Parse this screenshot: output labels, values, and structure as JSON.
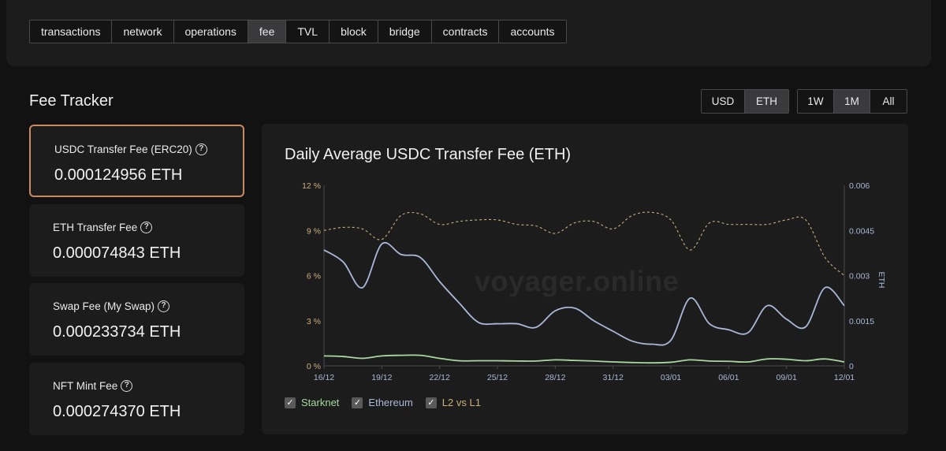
{
  "tabs": [
    {
      "label": "transactions",
      "active": false
    },
    {
      "label": "network",
      "active": false
    },
    {
      "label": "operations",
      "active": false
    },
    {
      "label": "fee",
      "active": true
    },
    {
      "label": "TVL",
      "active": false
    },
    {
      "label": "block",
      "active": false
    },
    {
      "label": "bridge",
      "active": false
    },
    {
      "label": "contracts",
      "active": false
    },
    {
      "label": "accounts",
      "active": false
    }
  ],
  "section_title": "Fee Tracker",
  "currency_toggle": {
    "options": [
      "USD",
      "ETH"
    ],
    "selected": "ETH"
  },
  "range_toggle": {
    "options": [
      "1W",
      "1M",
      "All"
    ],
    "selected": "1M"
  },
  "fee_cards": [
    {
      "label": "USDC Transfer Fee (ERC20)",
      "value": "0.000124956 ETH",
      "selected": true
    },
    {
      "label": "ETH Transfer Fee",
      "value": "0.000074843 ETH",
      "selected": false
    },
    {
      "label": "Swap Fee (My Swap)",
      "value": "0.000233734 ETH",
      "selected": false
    },
    {
      "label": "NFT Mint Fee",
      "value": "0.000274370 ETH",
      "selected": false
    }
  ],
  "watermark": "voyager.online",
  "colors": {
    "starknet": "#a8d8a0",
    "ethereum": "#a9b8d6",
    "l2_vs_l1": "#c9b07a",
    "selected_border": "#c98a60"
  },
  "chart_data": {
    "type": "line",
    "title": "Daily Average USDC Transfer Fee (ETH)",
    "xlabel": "",
    "ylabel_left": "",
    "ylabel_right": "ETH",
    "x_tick_labels": [
      "16/12",
      "19/12",
      "22/12",
      "25/12",
      "28/12",
      "31/12",
      "03/01",
      "06/01",
      "09/01",
      "12/01"
    ],
    "y_left_ticks": [
      "0 %",
      "3 %",
      "6 %",
      "9 %",
      "12 %"
    ],
    "y_right_ticks": [
      "0",
      "0.0015",
      "0.003",
      "0.0045",
      "0.006"
    ],
    "y_left_range": [
      0,
      12
    ],
    "y_right_range": [
      0,
      0.006
    ],
    "x": [
      0,
      1,
      2,
      3,
      4,
      5,
      6,
      7,
      8,
      9,
      10,
      11,
      12,
      13,
      14,
      15,
      16,
      17,
      18,
      19,
      20,
      21,
      22,
      23,
      24,
      25,
      26,
      27
    ],
    "series": [
      {
        "name": "Starknet",
        "axis": "right",
        "style": "solid",
        "values": [
          0.00033,
          0.00031,
          0.00025,
          0.00033,
          0.00035,
          0.00035,
          0.00025,
          0.00017,
          0.00017,
          0.00017,
          0.00016,
          0.00016,
          0.0002,
          0.00018,
          0.00016,
          0.00013,
          0.00011,
          0.0001,
          0.00012,
          0.0002,
          0.00016,
          0.00015,
          0.00013,
          0.00023,
          0.00022,
          0.00017,
          0.00023,
          0.00013
        ]
      },
      {
        "name": "Ethereum",
        "axis": "right",
        "style": "solid",
        "values": [
          0.00385,
          0.00345,
          0.0026,
          0.00405,
          0.0037,
          0.0036,
          0.0028,
          0.0021,
          0.00145,
          0.0014,
          0.0014,
          0.00128,
          0.00183,
          0.00192,
          0.0015,
          0.00115,
          0.00082,
          0.00072,
          0.00085,
          0.00225,
          0.0014,
          0.0012,
          0.0011,
          0.002,
          0.00155,
          0.0013,
          0.0026,
          0.002
        ]
      },
      {
        "name": "L2 vs L1",
        "axis": "left",
        "style": "dashed",
        "values": [
          9.0,
          9.2,
          9.1,
          8.4,
          10.0,
          10.1,
          9.4,
          9.6,
          9.7,
          9.7,
          9.4,
          9.3,
          8.8,
          9.5,
          9.6,
          9.1,
          10.0,
          10.2,
          9.7,
          7.7,
          9.5,
          9.4,
          9.4,
          9.4,
          9.7,
          9.7,
          7.2,
          6.0
        ]
      }
    ],
    "grid": false,
    "legend_position": "bottom-left"
  }
}
